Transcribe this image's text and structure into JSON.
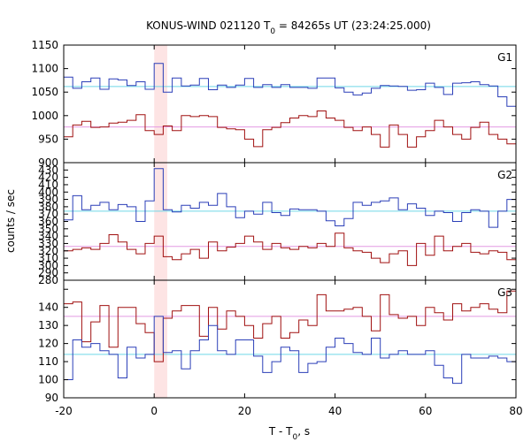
{
  "chart_data": {
    "type": "line",
    "title_prefix": "KONUS-WIND 021120 T",
    "title_sub": "0",
    "title_suffix": " = 84265s UT (23:24:25.000)",
    "xlabel_prefix": "T - T",
    "xlabel_sub": "0",
    "xlabel_suffix": ", s",
    "ylabel": "counts / sec",
    "xlim": [
      -20,
      80
    ],
    "xticks": [
      -20,
      0,
      20,
      40,
      60,
      80
    ],
    "highlight": {
      "x0": 0.0,
      "x1": 2.9,
      "color": "#fde4e4"
    },
    "panels": [
      {
        "label": "G1",
        "ylim": [
          900,
          1150
        ],
        "yticks": [
          900,
          950,
          1000,
          1050,
          1100,
          1150
        ],
        "series": [
          {
            "color": "#2b3fb8",
            "x": [
              -20,
              -18,
              -16,
              -14,
              -12,
              -10,
              -8,
              -6,
              -4,
              -2,
              0,
              2,
              4,
              6,
              8,
              10,
              12,
              14,
              16,
              18,
              20,
              22,
              24,
              26,
              28,
              30,
              32,
              34,
              36,
              38,
              40,
              42,
              44,
              46,
              48,
              50,
              52,
              54,
              56,
              58,
              60,
              62,
              64,
              66,
              68,
              70,
              72,
              74,
              76,
              78,
              80
            ],
            "y": [
              1082,
              1058,
              1072,
              1080,
              1056,
              1078,
              1076,
              1064,
              1072,
              1056,
              1111,
              1050,
              1080,
              1063,
              1065,
              1079,
              1055,
              1065,
              1060,
              1065,
              1079,
              1060,
              1066,
              1060,
              1066,
              1060,
              1060,
              1058,
              1080,
              1080,
              1059,
              1050,
              1044,
              1048,
              1058,
              1064,
              1063,
              1062,
              1054,
              1055,
              1069,
              1060,
              1045,
              1069,
              1070,
              1072,
              1066,
              1063,
              1040,
              1020,
              1060
            ],
            "baseline": 1062,
            "baseline_color": "#6fd6e6"
          },
          {
            "color": "#a01010",
            "x": [
              -20,
              -18,
              -16,
              -14,
              -12,
              -10,
              -8,
              -6,
              -4,
              -2,
              0,
              2,
              4,
              6,
              8,
              10,
              12,
              14,
              16,
              18,
              20,
              22,
              24,
              26,
              28,
              30,
              32,
              34,
              36,
              38,
              40,
              42,
              44,
              46,
              48,
              50,
              52,
              54,
              56,
              58,
              60,
              62,
              64,
              66,
              68,
              70,
              72,
              74,
              76,
              78,
              80
            ],
            "y": [
              955,
              980,
              988,
              975,
              976,
              984,
              986,
              990,
              1002,
              968,
              960,
              978,
              968,
              1000,
              998,
              1000,
              998,
              975,
              972,
              970,
              950,
              934,
              970,
              975,
              985,
              995,
              1000,
              998,
              1010,
              995,
              990,
              975,
              968,
              976,
              960,
              933,
              980,
              960,
              933,
              955,
              968,
              990,
              976,
              960,
              950,
              975,
              986,
              960,
              950,
              940,
              977
            ],
            "baseline": 976,
            "baseline_color": "#e39ae3"
          }
        ]
      },
      {
        "label": "G2",
        "ylim": [
          280,
          440
        ],
        "yticks": [
          280,
          290,
          300,
          310,
          320,
          330,
          340,
          350,
          360,
          370,
          380,
          390,
          400,
          410,
          420,
          430,
          440
        ],
        "series": [
          {
            "color": "#2b3fb8",
            "x": [
              -20,
              -18,
              -16,
              -14,
              -12,
              -10,
              -8,
              -6,
              -4,
              -2,
              0,
              2,
              4,
              6,
              8,
              10,
              12,
              14,
              16,
              18,
              20,
              22,
              24,
              26,
              28,
              30,
              32,
              34,
              36,
              38,
              40,
              42,
              44,
              46,
              48,
              50,
              52,
              54,
              56,
              58,
              60,
              62,
              64,
              66,
              68,
              70,
              72,
              74,
              76,
              78,
              80
            ],
            "y": [
              362,
              395,
              376,
              382,
              386,
              376,
              383,
              380,
              360,
              388,
              432,
              376,
              373,
              382,
              378,
              386,
              382,
              398,
              380,
              365,
              374,
              370,
              386,
              372,
              368,
              377,
              376,
              376,
              374,
              361,
              354,
              364,
              386,
              382,
              386,
              388,
              392,
              376,
              384,
              378,
              368,
              374,
              372,
              360,
              372,
              376,
              374,
              352,
              374,
              390,
              373
            ],
            "baseline": 374,
            "baseline_color": "#6fd6e6"
          },
          {
            "color": "#a01010",
            "x": [
              -20,
              -18,
              -16,
              -14,
              -12,
              -10,
              -8,
              -6,
              -4,
              -2,
              0,
              2,
              4,
              6,
              8,
              10,
              12,
              14,
              16,
              18,
              20,
              22,
              24,
              26,
              28,
              30,
              32,
              34,
              36,
              38,
              40,
              42,
              44,
              46,
              48,
              50,
              52,
              54,
              56,
              58,
              60,
              62,
              64,
              66,
              68,
              70,
              72,
              74,
              76,
              78,
              80
            ],
            "y": [
              320,
              322,
              324,
              322,
              330,
              342,
              332,
              322,
              316,
              330,
              340,
              312,
              308,
              316,
              322,
              310,
              332,
              320,
              325,
              330,
              340,
              332,
              322,
              330,
              324,
              322,
              326,
              324,
              330,
              326,
              344,
              324,
              320,
              318,
              310,
              304,
              316,
              320,
              300,
              330,
              314,
              340,
              320,
              326,
              330,
              318,
              316,
              320,
              318,
              308,
              326
            ],
            "baseline": 326,
            "baseline_color": "#e39ae3"
          }
        ]
      },
      {
        "label": "G3",
        "ylim": [
          90,
          155
        ],
        "yticks": [
          90,
          100,
          110,
          120,
          130,
          140,
          150
        ],
        "series": [
          {
            "color": "#a01010",
            "x": [
              -20,
              -18,
              -16,
              -14,
              -12,
              -10,
              -8,
              -6,
              -4,
              -2,
              0,
              2,
              4,
              6,
              8,
              10,
              12,
              14,
              16,
              18,
              20,
              22,
              24,
              26,
              28,
              30,
              32,
              34,
              36,
              38,
              40,
              42,
              44,
              46,
              48,
              50,
              52,
              54,
              56,
              58,
              60,
              62,
              64,
              66,
              68,
              70,
              72,
              74,
              76,
              78,
              80
            ],
            "y": [
              142,
              143,
              121,
              132,
              141,
              118,
              140,
              140,
              131,
              126,
              110,
              134,
              138,
              141,
              141,
              124,
              140,
              128,
              138,
              135,
              130,
              123,
              131,
              135,
              123,
              126,
              133,
              130,
              147,
              138,
              138,
              139,
              140,
              135,
              127,
              147,
              136,
              134,
              135,
              130,
              140,
              137,
              133,
              142,
              138,
              140,
              142,
              139,
              137,
              149,
              135
            ],
            "baseline": 135,
            "baseline_color": "#e39ae3"
          },
          {
            "color": "#2b3fb8",
            "x": [
              -20,
              -18,
              -16,
              -14,
              -12,
              -10,
              -8,
              -6,
              -4,
              -2,
              0,
              2,
              4,
              6,
              8,
              10,
              12,
              14,
              16,
              18,
              20,
              22,
              24,
              26,
              28,
              30,
              32,
              34,
              36,
              38,
              40,
              42,
              44,
              46,
              48,
              50,
              52,
              54,
              56,
              58,
              60,
              62,
              64,
              66,
              68,
              70,
              72,
              74,
              76,
              78,
              80
            ],
            "y": [
              100,
              122,
              118,
              120,
              116,
              114,
              101,
              118,
              112,
              114,
              135,
              115,
              116,
              106,
              116,
              122,
              130,
              116,
              114,
              122,
              122,
              113,
              104,
              110,
              118,
              116,
              104,
              109,
              110,
              118,
              123,
              120,
              115,
              114,
              123,
              112,
              114,
              116,
              114,
              114,
              116,
              108,
              101,
              98,
              114,
              112,
              112,
              113,
              112,
              110,
              114
            ],
            "baseline": 114,
            "baseline_color": "#6fd6e6"
          }
        ]
      }
    ]
  }
}
